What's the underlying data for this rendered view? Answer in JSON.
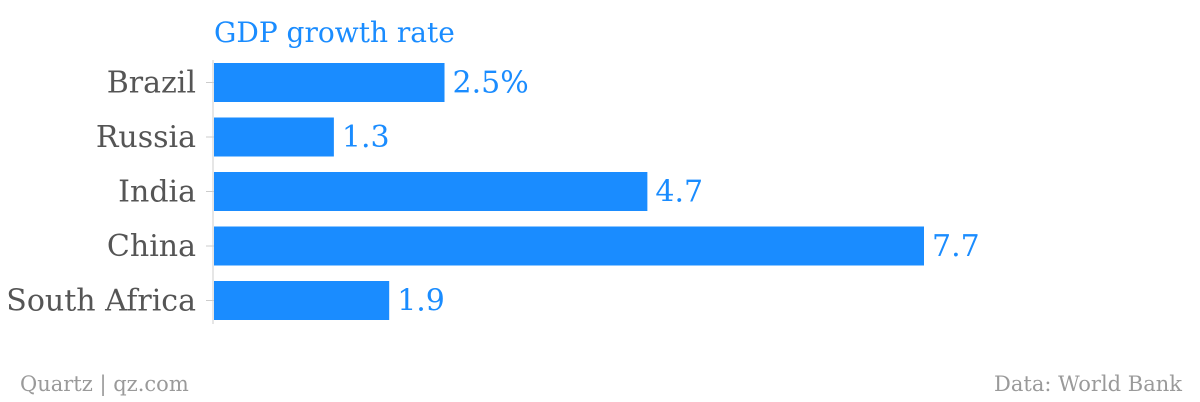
{
  "chart_data": {
    "type": "bar",
    "orientation": "horizontal",
    "title": "GDP growth rate",
    "categories": [
      "Brazil",
      "Russia",
      "India",
      "China",
      "South Africa"
    ],
    "values": [
      2.5,
      1.3,
      4.7,
      7.7,
      1.9
    ],
    "value_labels": [
      "2.5%",
      "1.3",
      "4.7",
      "7.7",
      "1.9"
    ],
    "unit": "%",
    "xlim": [
      0,
      7.7
    ],
    "grid": false,
    "bar_color": "#1a8cff"
  },
  "footer": {
    "source_left": "Quartz | qz.com",
    "source_right": "Data: World Bank"
  }
}
